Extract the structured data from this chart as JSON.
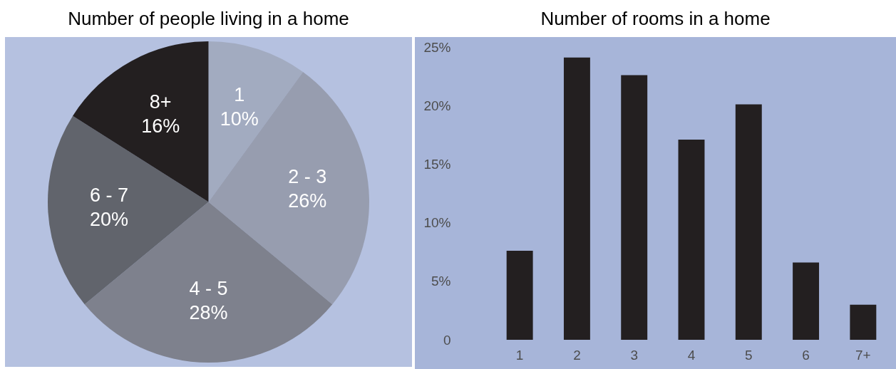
{
  "chart_data": [
    {
      "type": "pie",
      "title": "Number of people living in a home",
      "categories": [
        "1",
        "2 - 3",
        "4 - 5",
        "6 - 7",
        "8+"
      ],
      "values": [
        10,
        26,
        28,
        20,
        16
      ],
      "value_labels": [
        "10%",
        "26%",
        "28%",
        "20%",
        "16%"
      ],
      "colors": [
        "#a2abc0",
        "#979daf",
        "#7e818d",
        "#61646c",
        "#231f20"
      ]
    },
    {
      "type": "bar",
      "title": "Number of rooms in a home",
      "categories": [
        "1",
        "2",
        "3",
        "4",
        "5",
        "6",
        "7+"
      ],
      "values": [
        7.6,
        24.1,
        22.6,
        17.1,
        20.1,
        6.6,
        3.0
      ],
      "color": "#231f20",
      "ylim": [
        0,
        25
      ],
      "yticks": [
        0,
        {
          "value": 5,
          "label": "5%"
        },
        {
          "value": 10,
          "label": "10%"
        },
        {
          "value": 15,
          "label": "15%"
        },
        {
          "value": 20,
          "label": "20%"
        },
        {
          "value": 25,
          "label": "25%"
        }
      ]
    }
  ]
}
